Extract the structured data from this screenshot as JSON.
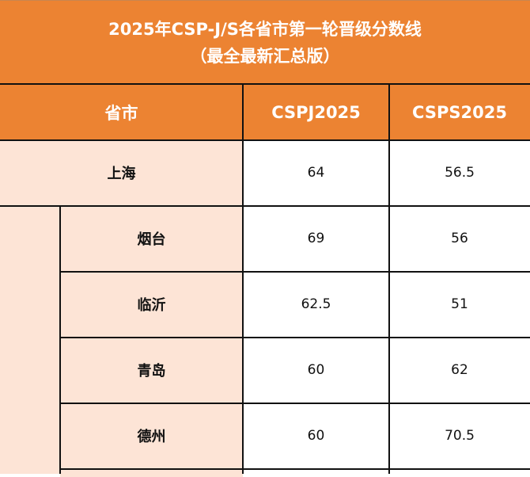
{
  "title": {
    "line1": "2025年CSP-J/S各省市第一轮晋级分数线",
    "line2": "（最全最新汇总版）"
  },
  "columns": [
    "省市",
    "CSPJ2025",
    "CSPS2025"
  ],
  "rows": [
    {
      "name": "上海",
      "j": "64",
      "s": "56.5"
    },
    {
      "name": "烟台",
      "j": "69",
      "s": "56"
    },
    {
      "name": "临沂",
      "j": "62.5",
      "s": "51"
    },
    {
      "name": "青岛",
      "j": "60",
      "s": "62"
    },
    {
      "name": "德州",
      "j": "60",
      "s": "70.5"
    }
  ],
  "colors": {
    "header": "#EC8332",
    "name_cell": "#FDE4D6"
  }
}
